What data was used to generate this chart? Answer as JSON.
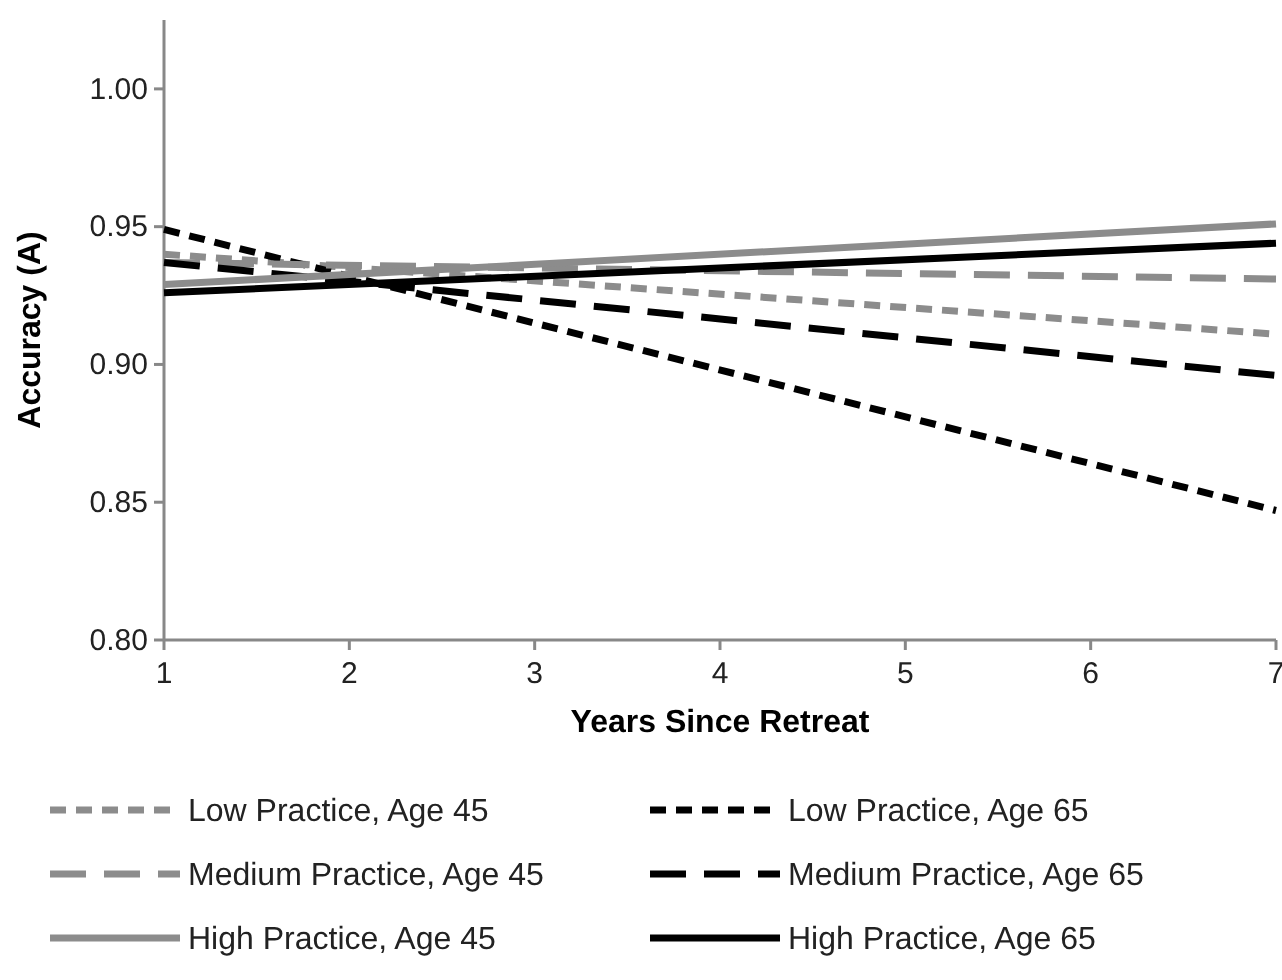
{
  "chart_data": {
    "type": "line",
    "xlabel": "Years Since Retreat",
    "ylabel": "Accuracy (A)",
    "x": [
      1,
      7
    ],
    "xlim": [
      1,
      7
    ],
    "xticks": [
      1,
      2,
      3,
      4,
      5,
      6,
      7
    ],
    "ylim": [
      0.8,
      1.025
    ],
    "yticks": [
      {
        "value": 0.8,
        "label": "0.80"
      },
      {
        "value": 0.85,
        "label": "0.85"
      },
      {
        "value": 0.9,
        "label": "0.90"
      },
      {
        "value": 0.95,
        "label": "0.95"
      },
      {
        "value": 1.0,
        "label": "1.00"
      }
    ],
    "grid": false,
    "legend": "bottom",
    "marker": "none",
    "series": [
      {
        "name": "Low Practice, Age 45",
        "color": "#8c8c8c",
        "line_style": "dotted",
        "values": [
          0.94,
          0.911
        ]
      },
      {
        "name": "Low Practice, Age 65",
        "color": "#000000",
        "line_style": "dotted",
        "values": [
          0.949,
          0.847
        ]
      },
      {
        "name": "Medium Practice, Age 45",
        "color": "#8c8c8c",
        "line_style": "dashed",
        "values": [
          0.937,
          0.931
        ]
      },
      {
        "name": "Medium Practice, Age 65",
        "color": "#000000",
        "line_style": "dashed",
        "values": [
          0.937,
          0.896
        ]
      },
      {
        "name": "High Practice, Age 45",
        "color": "#8c8c8c",
        "line_style": "solid",
        "values": [
          0.929,
          0.951
        ]
      },
      {
        "name": "High Practice, Age 65",
        "color": "#000000",
        "line_style": "solid",
        "values": [
          0.926,
          0.944
        ]
      }
    ]
  }
}
